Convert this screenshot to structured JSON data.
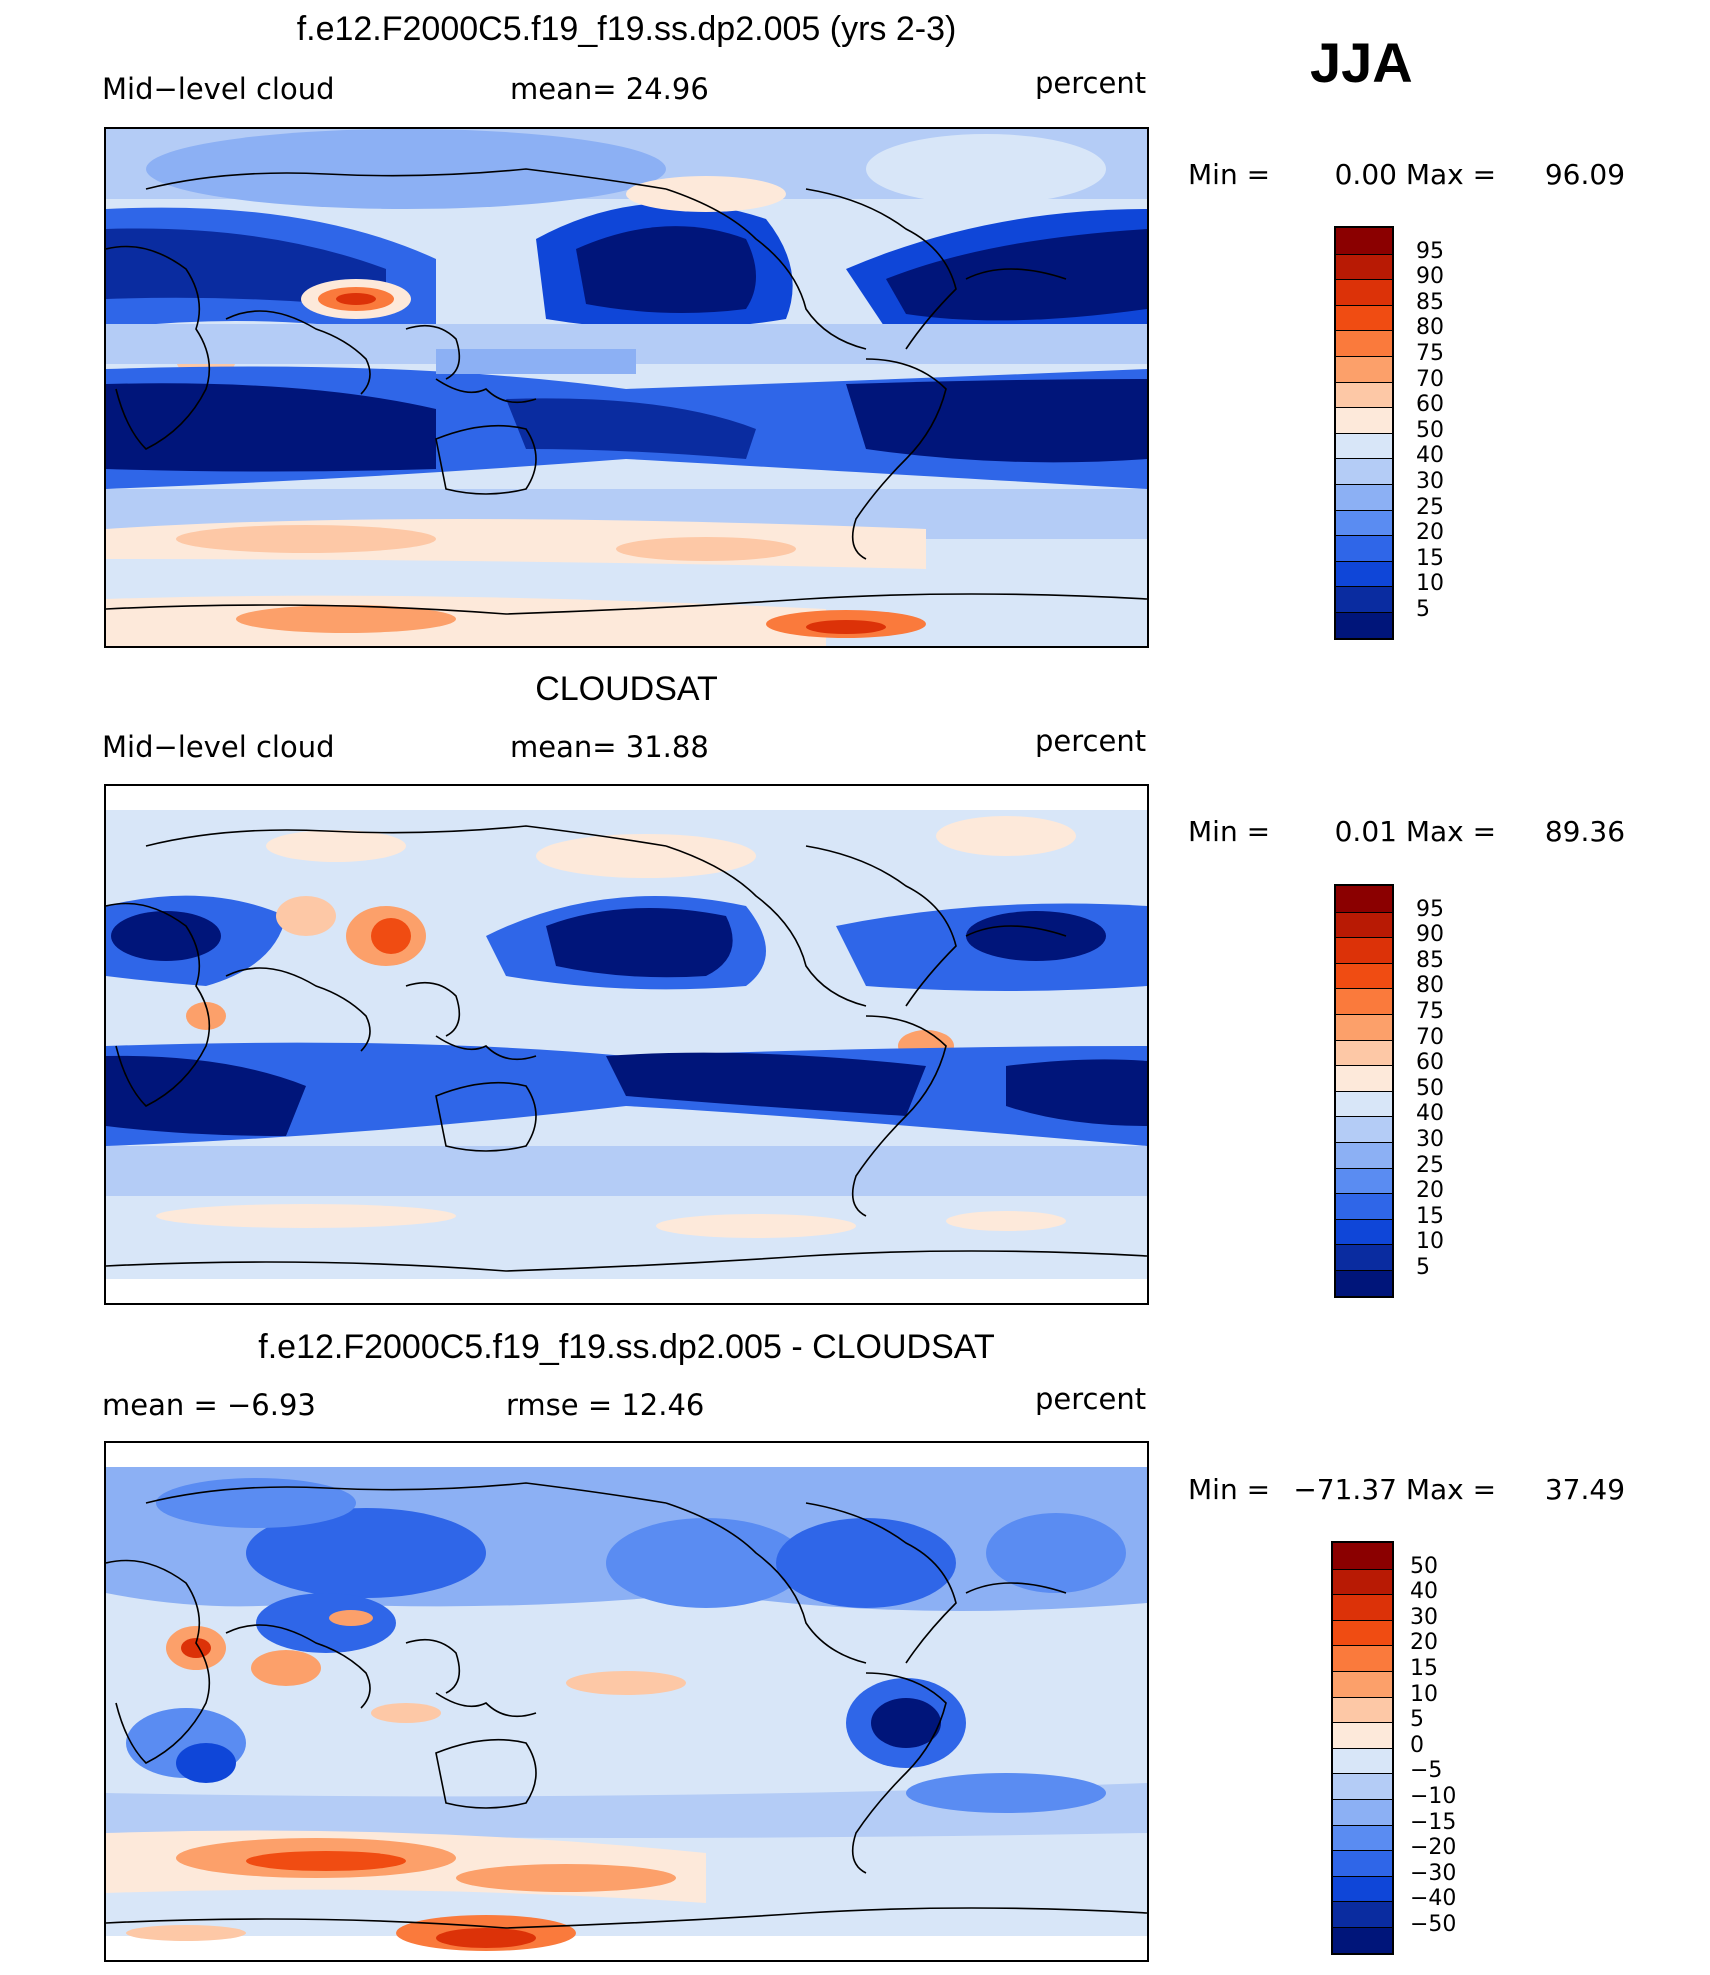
{
  "season": "JJA",
  "panels": [
    {
      "title": "f.e12.F2000C5.f19_f19.ss.dp2.005 (yrs 2-3)",
      "left_label": "Mid−level cloud",
      "center_label": "mean=   24.96",
      "right_label": "percent",
      "min_label": "Min =",
      "min_value": "0.00",
      "max_label": "Max =",
      "max_value": "96.09",
      "colorbar_labels": [
        "95",
        "90",
        "85",
        "80",
        "75",
        "70",
        "60",
        "50",
        "40",
        "30",
        "25",
        "20",
        "15",
        "10",
        "5"
      ],
      "colorbar_colors": [
        "#8b0000",
        "#b81a04",
        "#dc3208",
        "#f04c12",
        "#fa7a3c",
        "#fca06a",
        "#fdc8a6",
        "#fde9da",
        "#d8e6f8",
        "#b4ccf6",
        "#8cb0f4",
        "#5a8cf2",
        "#2f66e8",
        "#0f46d8",
        "#0a2ca0",
        "#00157a"
      ]
    },
    {
      "title": "CLOUDSAT",
      "left_label": "Mid−level cloud",
      "center_label": "mean=   31.88",
      "right_label": "percent",
      "min_label": "Min =",
      "min_value": "0.01",
      "max_label": "Max =",
      "max_value": "89.36",
      "colorbar_labels": [
        "95",
        "90",
        "85",
        "80",
        "75",
        "70",
        "60",
        "50",
        "40",
        "30",
        "25",
        "20",
        "15",
        "10",
        "5"
      ],
      "colorbar_colors": [
        "#8b0000",
        "#b81a04",
        "#dc3208",
        "#f04c12",
        "#fa7a3c",
        "#fca06a",
        "#fdc8a6",
        "#fde9da",
        "#d8e6f8",
        "#b4ccf6",
        "#8cb0f4",
        "#5a8cf2",
        "#2f66e8",
        "#0f46d8",
        "#0a2ca0",
        "#00157a"
      ]
    },
    {
      "title": "f.e12.F2000C5.f19_f19.ss.dp2.005 - CLOUDSAT",
      "left_label": "mean =   −6.93",
      "center_label": "rmse =   12.46",
      "right_label": "percent",
      "min_label": "Min =",
      "min_value": "−71.37",
      "max_label": "Max =",
      "max_value": "37.49",
      "colorbar_labels": [
        "50",
        "40",
        "30",
        "20",
        "15",
        "10",
        "5",
        "0",
        "−5",
        "−10",
        "−15",
        "−20",
        "−30",
        "−40",
        "−50"
      ],
      "colorbar_colors": [
        "#8b0000",
        "#b81a04",
        "#dc3208",
        "#f04c12",
        "#fa7a3c",
        "#fca06a",
        "#fdc8a6",
        "#fde9da",
        "#d8e6f8",
        "#b4ccf6",
        "#8cb0f4",
        "#5a8cf2",
        "#2f66e8",
        "#0f46d8",
        "#0a2ca0",
        "#00157a"
      ]
    }
  ],
  "chart_data": [
    {
      "type": "heatmap",
      "title": "f.e12.F2000C5.f19_f19.ss.dp2.005 (yrs 2-3)",
      "variable": "Mid−level cloud",
      "units": "percent",
      "mean": 24.96,
      "min": 0.0,
      "max": 96.09,
      "contour_levels": [
        5,
        10,
        15,
        20,
        25,
        30,
        40,
        50,
        60,
        70,
        75,
        80,
        85,
        90,
        95
      ]
    },
    {
      "type": "heatmap",
      "title": "CLOUDSAT",
      "variable": "Mid−level cloud",
      "units": "percent",
      "mean": 31.88,
      "min": 0.01,
      "max": 89.36,
      "contour_levels": [
        5,
        10,
        15,
        20,
        25,
        30,
        40,
        50,
        60,
        70,
        75,
        80,
        85,
        90,
        95
      ]
    },
    {
      "type": "heatmap",
      "title": "f.e12.F2000C5.f19_f19.ss.dp2.005 - CLOUDSAT",
      "units": "percent",
      "mean": -6.93,
      "rmse": 12.46,
      "min": -71.37,
      "max": 37.49,
      "contour_levels": [
        -50,
        -40,
        -30,
        -20,
        -15,
        -10,
        -5,
        0,
        5,
        10,
        15,
        20,
        30,
        40,
        50
      ]
    }
  ]
}
